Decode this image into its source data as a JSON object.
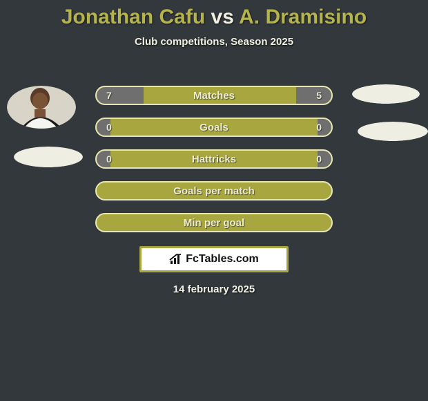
{
  "theme": {
    "background_color": "#33383c",
    "text_color": "#f2f2e8",
    "title_color_p1": "#b5b44b",
    "title_color_vs": "#f0efe0",
    "title_color_p2": "#b5b44b",
    "subtitle_color": "#f0efe0",
    "bar_bg": "#a7a63f",
    "bar_border": "#e8e7b4",
    "bar_border_width": 2,
    "fill_left_color": "#6f6f6f",
    "fill_right_color": "#6f6f6f",
    "bar_text_color": "#ebead6",
    "avatar_fill": "#efeee2",
    "badge_border": "#a7a63f",
    "badge_border_width": 3
  },
  "header": {
    "player1": "Jonathan Cafu",
    "vs": "vs",
    "player2": "A. Dramisino",
    "subtitle": "Club competitions, Season 2025"
  },
  "stats": [
    {
      "label": "Matches",
      "left_val": "7",
      "right_val": "5",
      "left_pct": 20,
      "right_pct": 15
    },
    {
      "label": "Goals",
      "left_val": "0",
      "right_val": "0",
      "left_pct": 6,
      "right_pct": 6
    },
    {
      "label": "Hattricks",
      "left_val": "0",
      "right_val": "0",
      "left_pct": 6,
      "right_pct": 6
    },
    {
      "label": "Goals per match",
      "left_val": "",
      "right_val": "",
      "left_pct": 0,
      "right_pct": 0
    },
    {
      "label": "Min per goal",
      "left_val": "",
      "right_val": "",
      "left_pct": 0,
      "right_pct": 0
    }
  ],
  "badge": {
    "text": "FcTables.com"
  },
  "date": "14 february 2025"
}
